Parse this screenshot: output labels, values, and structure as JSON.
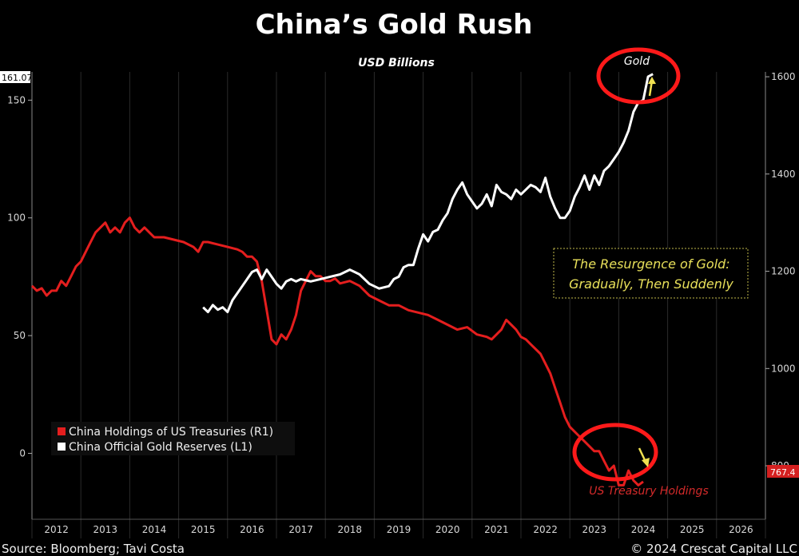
{
  "chart_data": {
    "type": "line",
    "title": "China’s Gold Rush",
    "subtitle": "USD Billions",
    "x_ticks": [
      "2012",
      "2013",
      "2014",
      "2015",
      "2016",
      "2017",
      "2018",
      "2019",
      "2020",
      "2021",
      "2022",
      "2023",
      "2024",
      "2025",
      "2026"
    ],
    "xlim": [
      2011.5,
      2026.5
    ],
    "left_axis": {
      "ticks": [
        "0",
        "50",
        "100",
        "150"
      ],
      "tick_values": [
        0,
        50,
        100,
        150
      ],
      "ylim": [
        -28,
        162
      ],
      "last_value_label": "161.07"
    },
    "right_axis": {
      "ticks": [
        "800",
        "1000",
        "1200",
        "1400",
        "1600"
      ],
      "tick_values": [
        800,
        1000,
        1200,
        1400,
        1600
      ],
      "ylim": [
        690,
        1610
      ],
      "last_value_label": "767.4"
    },
    "legend": {
      "placement": "bottom-left",
      "entries": [
        {
          "label": "China Holdings of US Treasuries (R1)",
          "color": "#e41e1e"
        },
        {
          "label": "China Official Gold Reserves (L1)",
          "color": "#ffffff"
        }
      ]
    },
    "annotations": {
      "box_line1": "The Resurgence of Gold:",
      "box_line2": "Gradually, Then Suddenly",
      "gold_label": "Gold",
      "treasury_label": "US Treasury Holdings"
    },
    "series": [
      {
        "name": "China Holdings of US Treasuries (R1)",
        "axis": "right",
        "color": "#e41e1e",
        "x": [
          2011.5,
          2011.6,
          2011.7,
          2011.8,
          2011.9,
          2012.0,
          2012.1,
          2012.2,
          2012.3,
          2012.4,
          2012.5,
          2012.6,
          2012.7,
          2012.8,
          2012.9,
          2013.0,
          2013.1,
          2013.2,
          2013.3,
          2013.4,
          2013.5,
          2013.6,
          2013.7,
          2013.8,
          2013.9,
          2014.0,
          2014.2,
          2014.4,
          2014.6,
          2014.8,
          2014.9,
          2015.0,
          2015.1,
          2015.3,
          2015.5,
          2015.7,
          2015.8,
          2015.9,
          2016.0,
          2016.1,
          2016.2,
          2016.3,
          2016.4,
          2016.5,
          2016.6,
          2016.7,
          2016.8,
          2016.9,
          2017.0,
          2017.1,
          2017.2,
          2017.3,
          2017.4,
          2017.5,
          2017.6,
          2017.7,
          2017.8,
          2018.0,
          2018.2,
          2018.4,
          2018.6,
          2018.8,
          2019.0,
          2019.2,
          2019.4,
          2019.6,
          2019.8,
          2020.0,
          2020.2,
          2020.4,
          2020.6,
          2020.8,
          2020.9,
          2021.0,
          2021.1,
          2021.2,
          2021.3,
          2021.4,
          2021.5,
          2021.6,
          2021.7,
          2021.8,
          2021.9,
          2022.0,
          2022.1,
          2022.2,
          2022.3,
          2022.4,
          2022.5,
          2022.6,
          2022.7,
          2022.8,
          2022.9,
          2023.0,
          2023.1,
          2023.2,
          2023.3,
          2023.4,
          2023.5,
          2023.6,
          2023.7,
          2023.8,
          2023.9,
          2024.0
        ],
        "values": [
          1170,
          1160,
          1165,
          1150,
          1160,
          1160,
          1180,
          1170,
          1190,
          1210,
          1220,
          1240,
          1260,
          1280,
          1290,
          1300,
          1280,
          1290,
          1280,
          1300,
          1310,
          1290,
          1280,
          1290,
          1280,
          1270,
          1270,
          1265,
          1260,
          1250,
          1240,
          1260,
          1260,
          1255,
          1250,
          1245,
          1240,
          1230,
          1230,
          1220,
          1180,
          1120,
          1060,
          1050,
          1070,
          1060,
          1080,
          1110,
          1160,
          1180,
          1200,
          1190,
          1190,
          1180,
          1180,
          1185,
          1175,
          1180,
          1170,
          1150,
          1140,
          1130,
          1130,
          1120,
          1115,
          1110,
          1100,
          1090,
          1080,
          1085,
          1070,
          1065,
          1060,
          1070,
          1080,
          1100,
          1090,
          1080,
          1065,
          1060,
          1050,
          1040,
          1030,
          1010,
          990,
          960,
          930,
          900,
          880,
          870,
          860,
          850,
          840,
          830,
          830,
          810,
          790,
          800,
          760,
          760,
          790,
          770,
          760,
          767.4
        ]
      },
      {
        "name": "China Official Gold Reserves (L1)",
        "axis": "left",
        "color": "#ffffff",
        "x": [
          2015.0,
          2015.1,
          2015.2,
          2015.3,
          2015.4,
          2015.5,
          2015.6,
          2015.7,
          2015.8,
          2015.9,
          2016.0,
          2016.1,
          2016.2,
          2016.3,
          2016.4,
          2016.5,
          2016.6,
          2016.7,
          2016.8,
          2016.9,
          2017.0,
          2017.2,
          2017.4,
          2017.6,
          2017.8,
          2018.0,
          2018.1,
          2018.2,
          2018.4,
          2018.6,
          2018.8,
          2018.9,
          2019.0,
          2019.1,
          2019.2,
          2019.3,
          2019.4,
          2019.5,
          2019.6,
          2019.7,
          2019.8,
          2019.9,
          2020.0,
          2020.1,
          2020.2,
          2020.3,
          2020.4,
          2020.5,
          2020.6,
          2020.7,
          2020.8,
          2020.9,
          2021.0,
          2021.1,
          2021.2,
          2021.3,
          2021.4,
          2021.5,
          2021.6,
          2021.7,
          2021.8,
          2021.9,
          2022.0,
          2022.1,
          2022.2,
          2022.3,
          2022.4,
          2022.5,
          2022.6,
          2022.7,
          2022.8,
          2022.9,
          2023.0,
          2023.1,
          2023.2,
          2023.3,
          2023.4,
          2023.5,
          2023.6,
          2023.7,
          2023.8,
          2023.9,
          2024.0,
          2024.1,
          2024.2
        ],
        "values": [
          62,
          60,
          63,
          61,
          62,
          60,
          65,
          68,
          71,
          74,
          77,
          78,
          74,
          78,
          75,
          72,
          70,
          73,
          74,
          73,
          74,
          73,
          74,
          75,
          76,
          78,
          77,
          76,
          72,
          70,
          71,
          74,
          75,
          79,
          80,
          80,
          87,
          93,
          90,
          94,
          95,
          99,
          102,
          108,
          112,
          115,
          110,
          107,
          104,
          106,
          110,
          105,
          114,
          111,
          110,
          108,
          112,
          110,
          112,
          114,
          113,
          111,
          117,
          109,
          104,
          100,
          100,
          103,
          109,
          113,
          118,
          112,
          118,
          114,
          120,
          122,
          125,
          128,
          132,
          137,
          145,
          149,
          150,
          160,
          161.07
        ]
      }
    ]
  },
  "footer": {
    "source": "Source: Bloomberg; Tavi Costa",
    "copyright": "© 2024 Crescat Capital LLC"
  }
}
